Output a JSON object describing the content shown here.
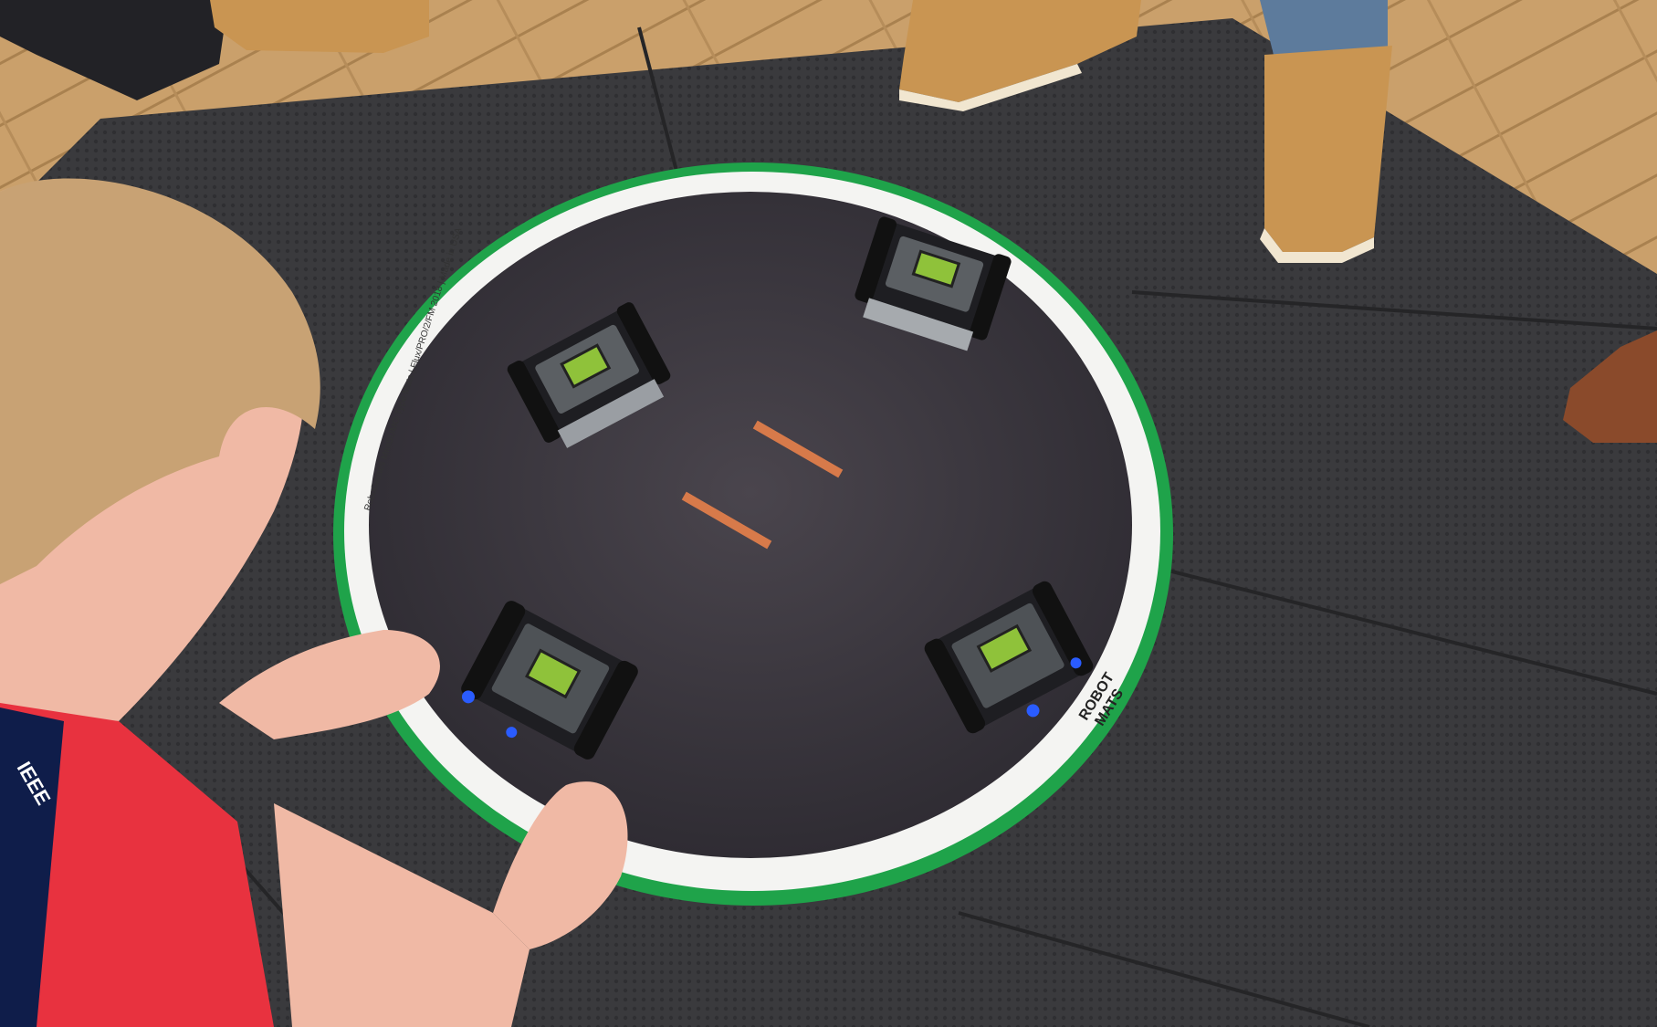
{
  "scene": {
    "description_free": true,
    "colors": {
      "floor": "#caa06b",
      "floor_dark": "#a9814f",
      "mat": "#3a3a3d",
      "mat_seam": "#2a2a2c",
      "ring_border": "#1fa34a",
      "ring_white": "#f4f4f2",
      "ring_surface": "#3b383e",
      "start_line": "#d77a4a",
      "robot_body": "#1e1e22",
      "robot_screen": "#8fc23a",
      "robot_led": "#2a5cff",
      "shirt": "#e8323f",
      "skin": "#f0b9a5",
      "hair": "#c8a274",
      "boot": "#c99552",
      "shoe_brown": "#8a4a2b"
    },
    "mat_logo": {
      "line1": "ROBOT",
      "line2": "MATS"
    },
    "rim_print": "RoboGames MiniSUMO Type Mats | Flux/PRO/2/FM 2018 | Made in USA",
    "lanyard_text": "IEEE",
    "robots": [
      {
        "id": "robot-top-left",
        "icon": "sumo-robot-icon"
      },
      {
        "id": "robot-top-right",
        "icon": "sumo-robot-icon"
      },
      {
        "id": "robot-bottom-left",
        "icon": "sumo-robot-icon"
      },
      {
        "id": "robot-bottom-right",
        "icon": "sumo-robot-icon"
      }
    ]
  }
}
